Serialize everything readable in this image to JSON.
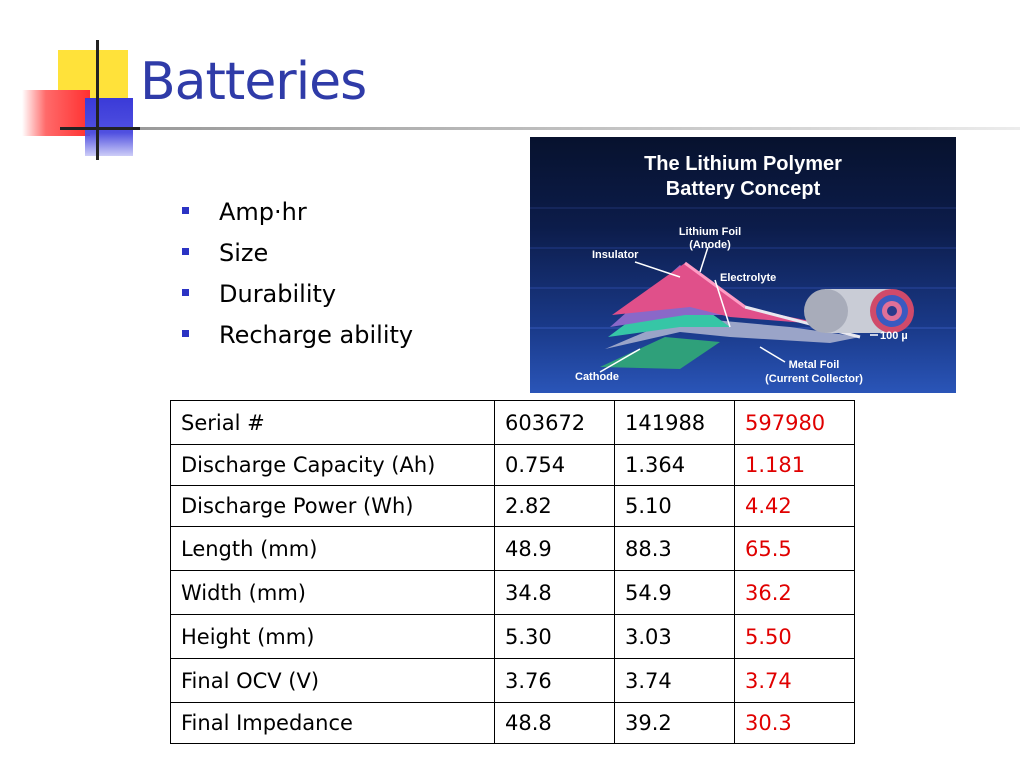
{
  "slide": {
    "title": "Batteries"
  },
  "bullets": [
    {
      "label": "Amp·hr"
    },
    {
      "label": "Size"
    },
    {
      "label": "Durability"
    },
    {
      "label": "Recharge ability"
    }
  ],
  "illustration": {
    "title_line1": "The Lithium Polymer",
    "title_line2": "Battery Concept",
    "labels": {
      "lithium_foil_1": "Lithium Foil",
      "lithium_foil_2": "(Anode)",
      "insulator": "Insulator",
      "electrolyte": "Electrolyte",
      "thickness": "100 µ",
      "cathode": "Cathode",
      "metal_foil_1": "Metal Foil",
      "metal_foil_2": "(Current Collector)"
    }
  },
  "table": {
    "highlight_color": "#e00000",
    "rows": [
      {
        "label": "Serial #",
        "v1": "603672",
        "v2": "141988",
        "v3": "597980"
      },
      {
        "label": "Discharge Capacity (Ah)",
        "v1": "0.754",
        "v2": "1.364",
        "v3": "1.181"
      },
      {
        "label": "Discharge Power (Wh)",
        "v1": "2.82",
        "v2": "5.10",
        "v3": "4.42"
      },
      {
        "label": "Length (mm)",
        "v1": "48.9",
        "v2": "88.3",
        "v3": "65.5"
      },
      {
        "label": "Width (mm)",
        "v1": "34.8",
        "v2": "54.9",
        "v3": "36.2"
      },
      {
        "label": "Height (mm)",
        "v1": "5.30",
        "v2": "3.03",
        "v3": "5.50"
      },
      {
        "label": "Final OCV (V)",
        "v1": "3.76",
        "v2": "3.74",
        "v3": "3.74"
      },
      {
        "label": "Final Impedance",
        "v1": "48.8",
        "v2": "39.2",
        "v3": "30.3"
      }
    ]
  },
  "colors": {
    "title": "#2f3ba8",
    "bullet": "#2b33c4",
    "logo_yellow": "#ffe23a",
    "logo_red": "#ff3030",
    "logo_blue": "#3a3ad8"
  }
}
